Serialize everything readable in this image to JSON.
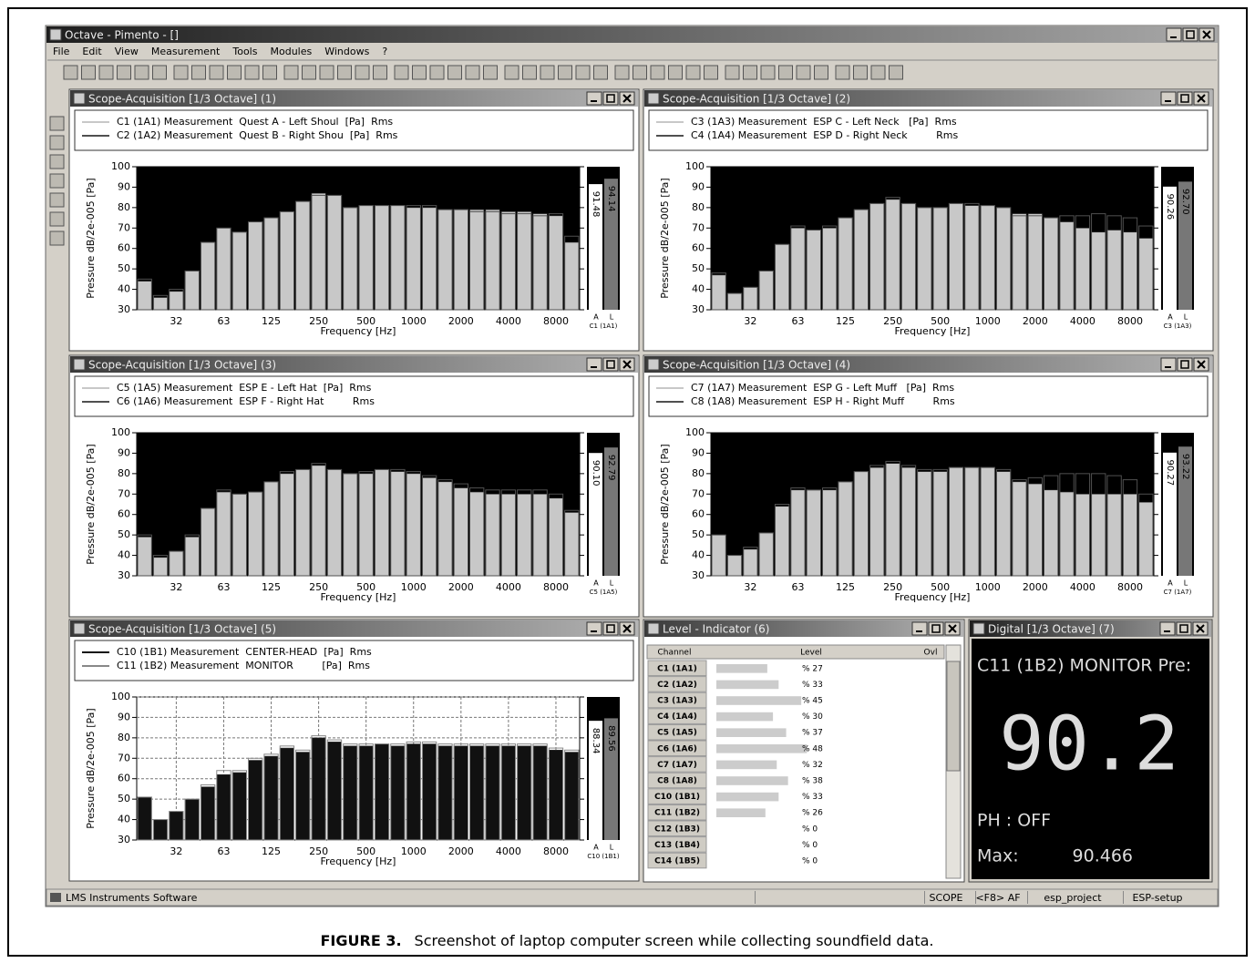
{
  "app": {
    "title": "Octave - Pimento - []",
    "menu": [
      "File",
      "Edit",
      "View",
      "Measurement",
      "Tools",
      "Modules",
      "Windows",
      "?"
    ],
    "status": [
      "LMS Instruments Software",
      "SCOPE",
      "<F8> AF",
      "esp_project",
      "ESP-setup"
    ]
  },
  "windows": [
    {
      "title": "Scope-Acquisition [1/3 Octave] (1)",
      "chart": {
        "type": "bar",
        "ylabel": "Pressure dB/2e-005 [Pa]",
        "xlabel": "Frequency [Hz]",
        "categories": [
          null,
          null,
          "32",
          null,
          null,
          "63",
          null,
          null,
          "125",
          null,
          null,
          "250",
          null,
          null,
          "500",
          null,
          null,
          "1000",
          null,
          null,
          "2000",
          null,
          null,
          "4000",
          null,
          null,
          "8000",
          null
        ],
        "ylim": [
          30,
          100
        ],
        "yticks": [
          30,
          40,
          50,
          60,
          70,
          80,
          90,
          100
        ],
        "grid": false,
        "plot_background": "#000000",
        "series": [
          {
            "name": "C1 (1A1) Measurement  Quest A - Left Shoul  [Pa]  Rms",
            "color": "#c8c8c8",
            "values": [
              44,
              36,
              39,
              49,
              63,
              70,
              68,
              73,
              75,
              78,
              83,
              87,
              86,
              80,
              81,
              81,
              81,
              80,
              80,
              79,
              79,
              79,
              79,
              78,
              78,
              77,
              76,
              63
            ]
          },
          {
            "name": "C2 (1A2) Measurement  Quest B - Right Shou  [Pa]  Rms",
            "color": "#505050",
            "values": [
              45,
              37,
              40,
              49,
              63,
              70,
              68,
              73,
              75,
              78,
              83,
              86,
              86,
              80,
              81,
              81,
              81,
              81,
              81,
              79,
              79,
              78,
              78,
              77,
              77,
              76,
              77,
              66
            ]
          }
        ],
        "meter": {
          "values": [
            91.48,
            94.14
          ],
          "value_labels": [
            "91.48",
            "94.14"
          ],
          "labels": [
            "A",
            "L"
          ],
          "channel": "C1 (1A1)"
        }
      }
    },
    {
      "title": "Scope-Acquisition [1/3 Octave] (2)",
      "chart": {
        "type": "bar",
        "ylabel": "Pressure dB/2e-005 [Pa]",
        "xlabel": "Frequency [Hz]",
        "categories": [
          null,
          null,
          "32",
          null,
          null,
          "63",
          null,
          null,
          "125",
          null,
          null,
          "250",
          null,
          null,
          "500",
          null,
          null,
          "1000",
          null,
          null,
          "2000",
          null,
          null,
          "4000",
          null,
          null,
          "8000",
          null
        ],
        "ylim": [
          30,
          100
        ],
        "yticks": [
          30,
          40,
          50,
          60,
          70,
          80,
          90,
          100
        ],
        "grid": false,
        "plot_background": "#000000",
        "series": [
          {
            "name": "C3 (1A3) Measurement  ESP C - Left Neck   [Pa]  Rms",
            "color": "#c8c8c8",
            "values": [
              47,
              38,
              41,
              49,
              62,
              70,
              69,
              70,
              75,
              79,
              82,
              84,
              82,
              80,
              80,
              82,
              81,
              81,
              80,
              77,
              77,
              75,
              73,
              70,
              68,
              69,
              68,
              65
            ]
          },
          {
            "name": "C4 (1A4) Measurement  ESP D - Right Neck         Rms",
            "color": "#505050",
            "values": [
              48,
              38,
              41,
              49,
              62,
              71,
              69,
              71,
              75,
              79,
              82,
              85,
              82,
              80,
              80,
              82,
              82,
              81,
              80,
              76,
              76,
              75,
              76,
              76,
              77,
              76,
              75,
              71
            ]
          }
        ],
        "meter": {
          "values": [
            90.26,
            92.7
          ],
          "value_labels": [
            "90.26",
            "92.70"
          ],
          "labels": [
            "A",
            "L"
          ],
          "channel": "C3 (1A3)"
        }
      }
    },
    {
      "title": "Scope-Acquisition [1/3 Octave] (3)",
      "chart": {
        "type": "bar",
        "ylabel": "Pressure dB/2e-005 [Pa]",
        "xlabel": "Frequency [Hz]",
        "categories": [
          null,
          null,
          "32",
          null,
          null,
          "63",
          null,
          null,
          "125",
          null,
          null,
          "250",
          null,
          null,
          "500",
          null,
          null,
          "1000",
          null,
          null,
          "2000",
          null,
          null,
          "4000",
          null,
          null,
          "8000",
          null
        ],
        "ylim": [
          30,
          100
        ],
        "yticks": [
          30,
          40,
          50,
          60,
          70,
          80,
          90,
          100
        ],
        "grid": false,
        "plot_background": "#000000",
        "series": [
          {
            "name": "C5 (1A5) Measurement  ESP E - Left Hat  [Pa]  Rms",
            "color": "#c8c8c8",
            "values": [
              49,
              39,
              42,
              49,
              63,
              71,
              70,
              71,
              76,
              80,
              82,
              84,
              82,
              80,
              80,
              82,
              81,
              80,
              78,
              76,
              73,
              71,
              70,
              70,
              70,
              70,
              68,
              61
            ]
          },
          {
            "name": "C6 (1A6) Measurement  ESP F - Right Hat         Rms",
            "color": "#505050",
            "values": [
              50,
              40,
              42,
              50,
              63,
              72,
              70,
              71,
              76,
              81,
              82,
              85,
              82,
              80,
              81,
              82,
              82,
              81,
              79,
              77,
              75,
              73,
              72,
              72,
              72,
              72,
              70,
              62
            ]
          }
        ],
        "meter": {
          "values": [
            90.1,
            92.79
          ],
          "value_labels": [
            "90.10",
            "92.79"
          ],
          "labels": [
            "A",
            "L"
          ],
          "channel": "C5 (1A5)"
        }
      }
    },
    {
      "title": "Scope-Acquisition [1/3 Octave] (4)",
      "chart": {
        "type": "bar",
        "ylabel": "Pressure dB/2e-005 [Pa]",
        "xlabel": "Frequency [Hz]",
        "categories": [
          null,
          null,
          "32",
          null,
          null,
          "63",
          null,
          null,
          "125",
          null,
          null,
          "250",
          null,
          null,
          "500",
          null,
          null,
          "1000",
          null,
          null,
          "2000",
          null,
          null,
          "4000",
          null,
          null,
          "8000",
          null
        ],
        "ylim": [
          30,
          100
        ],
        "yticks": [
          30,
          40,
          50,
          60,
          70,
          80,
          90,
          100
        ],
        "grid": false,
        "plot_background": "#000000",
        "series": [
          {
            "name": "C7 (1A7) Measurement  ESP G - Left Muff   [Pa]  Rms",
            "color": "#c8c8c8",
            "values": [
              50,
              40,
              43,
              51,
              64,
              72,
              72,
              72,
              76,
              81,
              83,
              85,
              83,
              81,
              81,
              83,
              83,
              83,
              81,
              76,
              75,
              72,
              71,
              70,
              70,
              70,
              70,
              66
            ]
          },
          {
            "name": "C8 (1A8) Measurement  ESP H - Right Muff         Rms",
            "color": "#505050",
            "values": [
              50,
              40,
              44,
              51,
              65,
              73,
              72,
              73,
              76,
              81,
              84,
              86,
              84,
              82,
              82,
              83,
              83,
              83,
              82,
              77,
              78,
              79,
              80,
              80,
              80,
              79,
              77,
              70
            ]
          }
        ],
        "meter": {
          "values": [
            90.27,
            93.22
          ],
          "value_labels": [
            "90.27",
            "93.22"
          ],
          "labels": [
            "A",
            "L"
          ],
          "channel": "C7 (1A7)"
        }
      }
    },
    {
      "title": "Scope-Acquisition [1/3 Octave] (5)",
      "chart": {
        "type": "bar",
        "ylabel": "Pressure dB/2e-005 [Pa]",
        "xlabel": "Frequency [Hz]",
        "categories": [
          null,
          null,
          "32",
          null,
          null,
          "63",
          null,
          null,
          "125",
          null,
          null,
          "250",
          null,
          null,
          "500",
          null,
          null,
          "1000",
          null,
          null,
          "2000",
          null,
          null,
          "4000",
          null,
          null,
          "8000",
          null
        ],
        "ylim": [
          30,
          100
        ],
        "yticks": [
          30,
          40,
          50,
          60,
          70,
          80,
          90,
          100
        ],
        "grid": true,
        "plot_background": "#ffffff",
        "series": [
          {
            "name": "C10 (1B1) Measurement  CENTER-HEAD  [Pa]  Rms",
            "color": "#111111",
            "values": [
              51,
              40,
              44,
              50,
              56,
              62,
              63,
              69,
              71,
              75,
              73,
              80,
              78,
              76,
              76,
              77,
              76,
              77,
              77,
              76,
              76,
              76,
              76,
              76,
              76,
              76,
              74,
              73
            ]
          },
          {
            "name": "C11 (1B2) Measurement  MONITOR         [Pa]  Rms",
            "color": "#888888",
            "values": [
              51,
              40,
              44,
              50,
              57,
              64,
              64,
              70,
              72,
              76,
              74,
              81,
              79,
              77,
              77,
              77,
              77,
              78,
              78,
              77,
              77,
              77,
              77,
              77,
              77,
              77,
              75,
              74
            ]
          }
        ],
        "meter": {
          "values": [
            88.34,
            89.56
          ],
          "value_labels": [
            "88.34",
            "89.56"
          ],
          "labels": [
            "A",
            "L"
          ],
          "channel": "C10 (1B1)"
        }
      }
    }
  ],
  "level_indicator": {
    "title": "Level - Indicator (6)",
    "headers": [
      "Channel",
      "Level",
      "Ovl"
    ],
    "channels": [
      "C1 (1A1)",
      "C2 (1A2)",
      "C3 (1A3)",
      "C4 (1A4)",
      "C5 (1A5)",
      "C6 (1A6)",
      "C7 (1A7)",
      "C8 (1A8)",
      "C10 (1B1)",
      "C11 (1B2)",
      "C12 (1B3)",
      "C13 (1B4)",
      "C14 (1B5)"
    ],
    "values": [
      27,
      33,
      45,
      30,
      37,
      48,
      32,
      38,
      33,
      26,
      0,
      0,
      0
    ],
    "value_labels": [
      "% 27",
      "% 33",
      "% 45",
      "% 30",
      "% 37",
      "% 48",
      "% 32",
      "% 38",
      "% 33",
      "% 26",
      "% 0",
      "% 0",
      "% 0"
    ]
  },
  "digital": {
    "title": "Digital [1/3 Octave] (7)",
    "channel": "C11 (1B2) MONITOR Pre:",
    "value": 90.2,
    "ph": "PH : OFF",
    "max_label": "Max:",
    "max": 90.466
  },
  "caption": {
    "label": "FIGURE 3.",
    "text": "Screenshot of laptop computer screen while collecting soundfield data."
  }
}
